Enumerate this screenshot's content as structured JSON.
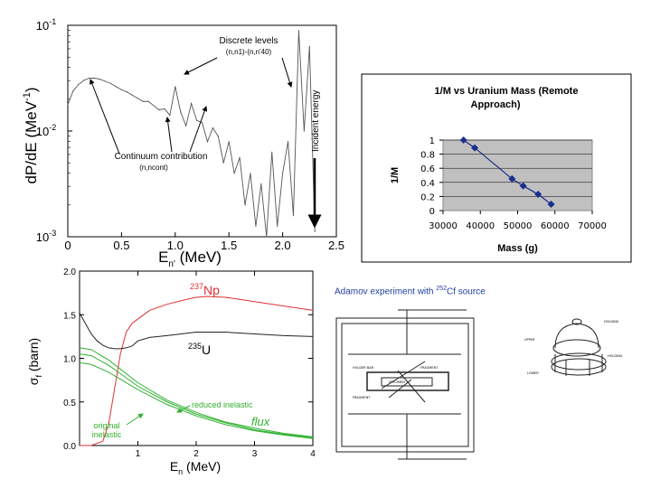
{
  "chart_data": [
    {
      "type": "line",
      "title": "",
      "ylabel": "dP/dE (MeV-1)",
      "ylabel_main": "dP/dE (MeV",
      "ylabel_exp": "-1",
      "ylabel_close": ")",
      "xlabel_main": "E",
      "xlabel_sub": "n'",
      "xlabel_unit": " (MeV)",
      "xlim": [
        0,
        2.5
      ],
      "ylim_log10": [
        -3,
        -1
      ],
      "log_y": true,
      "xticks": [
        "0",
        "0.5",
        "1.0",
        "1.5",
        "2.0",
        "2.5"
      ],
      "yticks": [
        {
          "base": "10",
          "exp": "-1"
        },
        {
          "base": "10",
          "exp": "-2"
        },
        {
          "base": "10",
          "exp": "-3"
        }
      ],
      "annotations": {
        "discrete_title": "Discrete levels",
        "discrete_sub": "(n,n1)-(n,n'40)",
        "continuum_title": "Continuum contribution",
        "continuum_sub": "(n,ncont)",
        "incident": "Incident energy"
      },
      "series": [
        {
          "x": [
            0.0,
            0.05,
            0.1,
            0.15,
            0.2,
            0.25,
            0.3,
            0.35,
            0.4,
            0.45,
            0.5,
            0.55,
            0.6,
            0.65,
            0.7,
            0.75,
            0.8,
            0.85,
            0.9,
            0.95,
            1.0,
            1.05,
            1.1,
            1.15,
            1.2,
            1.25,
            1.3,
            1.35,
            1.4,
            1.45,
            1.5,
            1.55,
            1.6,
            1.65,
            1.7,
            1.75,
            1.8,
            1.85,
            1.9,
            1.95,
            2.0,
            2.05,
            2.1,
            2.15,
            2.2,
            2.25,
            2.3
          ],
          "log10y": [
            -1.75,
            -1.62,
            -1.56,
            -1.52,
            -1.5,
            -1.5,
            -1.51,
            -1.53,
            -1.55,
            -1.58,
            -1.61,
            -1.63,
            -1.66,
            -1.69,
            -1.72,
            -1.72,
            -1.76,
            -1.8,
            -1.79,
            -1.85,
            -1.58,
            -1.82,
            -1.95,
            -1.74,
            -1.9,
            -1.92,
            -2.1,
            -1.97,
            -2.05,
            -2.3,
            -2.1,
            -2.4,
            -2.25,
            -2.7,
            -2.4,
            -2.9,
            -2.5,
            -3.0,
            -2.2,
            -2.9,
            -2.4,
            -2.1,
            -2.8,
            -1.05,
            -2.0,
            -1.2,
            -2.95
          ]
        }
      ]
    },
    {
      "type": "line",
      "title": "1/M vs Uranium Mass (Remote Approach)",
      "xlabel": "Mass (g)",
      "ylabel": "1/M",
      "xlim": [
        30000,
        70000
      ],
      "ylim": [
        0,
        1
      ],
      "xticks": [
        "30000",
        "40000",
        "50000",
        "60000",
        "70000"
      ],
      "yticks": [
        "0",
        "0.2",
        "0.4",
        "0.6",
        "0.8",
        "1"
      ],
      "series": [
        {
          "x": [
            35500,
            38500,
            48500,
            51500,
            55500,
            59000
          ],
          "y": [
            1.0,
            0.89,
            0.45,
            0.35,
            0.23,
            0.09
          ]
        }
      ]
    },
    {
      "type": "line",
      "title": "",
      "ylabel": "σf (barn)",
      "ylabel_main": "σ",
      "ylabel_sub": "f",
      "ylabel_unit": " (barn)",
      "xlabel_main": "E",
      "xlabel_sub": "n",
      "xlabel_unit": " (MeV)",
      "xlim": [
        0,
        4
      ],
      "ylim": [
        0,
        2.0
      ],
      "xticks": [
        "1",
        "2",
        "3",
        "4"
      ],
      "yticks": [
        "0.0",
        "0.5",
        "1.0",
        "1.5",
        "2.0"
      ],
      "series": [
        {
          "name_pre": "237",
          "name": "Np",
          "color": "#e03030",
          "x": [
            0.0,
            0.2,
            0.4,
            0.5,
            0.6,
            0.7,
            0.8,
            0.9,
            1.0,
            1.2,
            1.5,
            1.8,
            2.0,
            2.2,
            2.5,
            3.0,
            3.5,
            4.0
          ],
          "y": [
            0.0,
            0.0,
            0.05,
            0.25,
            0.65,
            1.05,
            1.3,
            1.4,
            1.45,
            1.55,
            1.62,
            1.67,
            1.7,
            1.71,
            1.7,
            1.65,
            1.6,
            1.55
          ]
        },
        {
          "name_pre": "235",
          "name": "U",
          "color": "#222222",
          "x": [
            0.0,
            0.1,
            0.2,
            0.3,
            0.4,
            0.5,
            0.6,
            0.7,
            0.8,
            0.9,
            1.0,
            1.2,
            1.5,
            2.0,
            2.5,
            3.0,
            3.5,
            4.0
          ],
          "y": [
            1.52,
            1.4,
            1.28,
            1.2,
            1.15,
            1.12,
            1.11,
            1.11,
            1.12,
            1.14,
            1.2,
            1.24,
            1.26,
            1.3,
            1.3,
            1.28,
            1.26,
            1.25
          ]
        },
        {
          "name": "reduced inelastic",
          "color": "#30b030",
          "x": [
            0.0,
            0.2,
            0.5,
            1.0,
            1.5,
            2.0,
            2.5,
            3.0,
            3.5,
            4.0
          ],
          "y": [
            1.12,
            1.1,
            0.98,
            0.72,
            0.52,
            0.38,
            0.27,
            0.2,
            0.14,
            0.1
          ]
        },
        {
          "name": "original inelastic",
          "color": "#30b030",
          "x": [
            0.0,
            0.2,
            0.5,
            1.0,
            1.5,
            2.0,
            2.5,
            3.0,
            3.5,
            4.0
          ],
          "y": [
            0.95,
            0.93,
            0.84,
            0.64,
            0.47,
            0.34,
            0.24,
            0.17,
            0.12,
            0.08
          ]
        },
        {
          "name": "flux",
          "color": "#30b030",
          "x": [
            0.0,
            0.2,
            0.5,
            1.0,
            1.5,
            2.0,
            2.5,
            3.0,
            3.5,
            4.0
          ],
          "y": [
            1.05,
            1.03,
            0.92,
            0.68,
            0.5,
            0.36,
            0.26,
            0.18,
            0.13,
            0.09
          ]
        }
      ],
      "labels": {
        "reduced": "reduced inelastic",
        "original_1": "original",
        "original_2": "inelastic",
        "flux": "flux"
      }
    }
  ],
  "caption": {
    "pre": "Adamov experiment with ",
    "sup": "252",
    "post": "Cf source"
  },
  "schematics": {
    "small_left_1": "HOLDER BAR",
    "small_left_2": "SPECIMEN",
    "small_left_3": "FRAGMENT",
    "small_right_1": "HOLDING",
    "small_right_2": "UPPER",
    "small_right_3": "HOLDING",
    "small_right_4": "LOWER"
  }
}
